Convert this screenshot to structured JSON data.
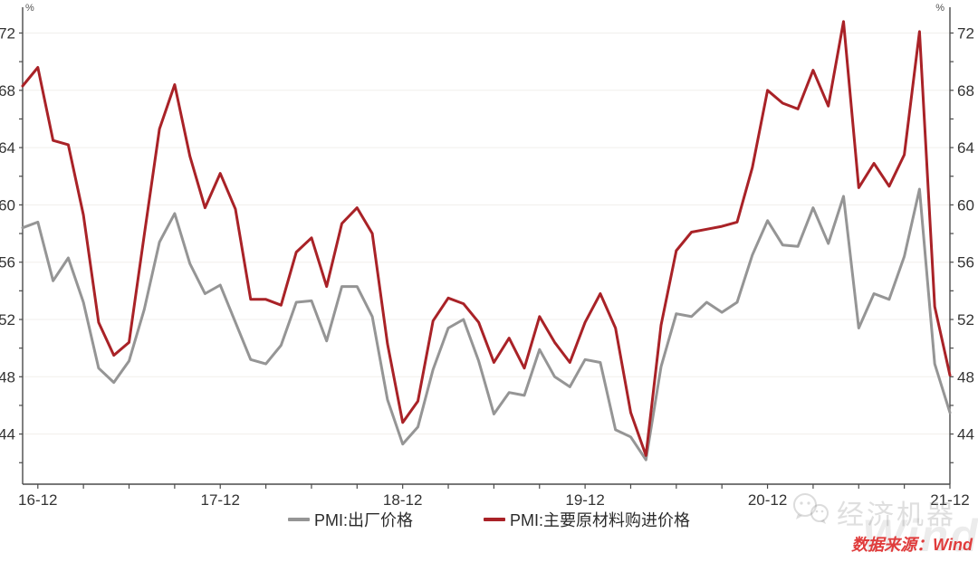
{
  "chart_data": {
    "type": "line",
    "title": "",
    "xlabel": "",
    "ylabel": "",
    "unit": "%",
    "ylim": [
      40.5,
      73.8
    ],
    "y_ticks": [
      44,
      48,
      52,
      56,
      60,
      64,
      68,
      72
    ],
    "y_minor_step": 2,
    "grid": "horizontal",
    "legend_position": "bottom",
    "x_major_tick_labels": [
      "16-12",
      "17-12",
      "18-12",
      "19-12",
      "20-12",
      "21-12"
    ],
    "x": [
      "16-11",
      "16-12",
      "17-01",
      "17-02",
      "17-03",
      "17-04",
      "17-05",
      "17-06",
      "17-07",
      "17-08",
      "17-09",
      "17-10",
      "17-11",
      "17-12",
      "18-01",
      "18-02",
      "18-03",
      "18-04",
      "18-05",
      "18-06",
      "18-07",
      "18-08",
      "18-09",
      "18-10",
      "18-11",
      "18-12",
      "19-01",
      "19-02",
      "19-03",
      "19-04",
      "19-05",
      "19-06",
      "19-07",
      "19-08",
      "19-09",
      "19-10",
      "19-11",
      "19-12",
      "20-01",
      "20-02",
      "20-03",
      "20-04",
      "20-05",
      "20-06",
      "20-07",
      "20-08",
      "20-09",
      "20-10",
      "20-11",
      "20-12",
      "21-01",
      "21-02",
      "21-03",
      "21-04",
      "21-05",
      "21-06",
      "21-07",
      "21-08",
      "21-09",
      "21-10",
      "21-11",
      "21-12"
    ],
    "series": [
      {
        "name": "PMI:出厂价格",
        "color": "#959595",
        "values": [
          58.4,
          58.8,
          54.7,
          56.3,
          53.2,
          48.6,
          47.6,
          49.1,
          52.7,
          57.4,
          59.4,
          55.9,
          53.8,
          54.4,
          51.8,
          49.2,
          48.9,
          50.2,
          53.2,
          53.3,
          50.5,
          54.3,
          54.3,
          52.2,
          46.4,
          43.3,
          44.5,
          48.5,
          51.4,
          52.0,
          49.1,
          45.4,
          46.9,
          46.7,
          49.9,
          48.0,
          47.3,
          49.2,
          49.0,
          44.3,
          43.8,
          42.2,
          48.7,
          52.4,
          52.2,
          53.2,
          52.5,
          53.2,
          56.5,
          58.9,
          57.2,
          57.1,
          59.8,
          57.3,
          60.6,
          51.4,
          53.8,
          53.4,
          56.4,
          61.1,
          48.9,
          45.5
        ]
      },
      {
        "name": "PMI:主要原材料购进价格",
        "color": "#a92227",
        "values": [
          68.3,
          69.6,
          64.5,
          64.2,
          59.3,
          51.8,
          49.5,
          50.4,
          57.9,
          65.3,
          68.4,
          63.4,
          59.8,
          62.2,
          59.7,
          53.4,
          53.4,
          53.0,
          56.7,
          57.7,
          54.3,
          58.7,
          59.8,
          58.0,
          50.3,
          44.8,
          46.3,
          51.9,
          53.5,
          53.1,
          51.8,
          49.0,
          50.7,
          48.6,
          52.2,
          50.4,
          49.0,
          51.8,
          53.8,
          51.4,
          45.5,
          42.5,
          51.6,
          56.8,
          58.1,
          58.3,
          58.5,
          58.8,
          62.6,
          68.0,
          67.1,
          66.7,
          69.4,
          66.9,
          72.8,
          61.2,
          62.9,
          61.3,
          63.5,
          72.1,
          52.9,
          48.1
        ]
      }
    ]
  },
  "watermark": {
    "brand": "经济机器",
    "background": "Wind"
  },
  "source": {
    "text": "数据来源：Wind",
    "color": "#e03c3c"
  }
}
